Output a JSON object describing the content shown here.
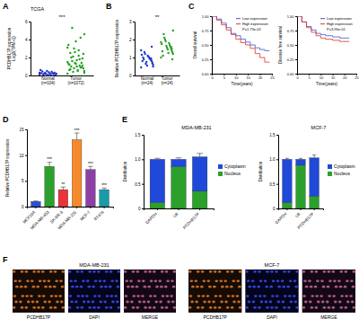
{
  "chart_data": [
    {
      "type": "strip",
      "panel": "A",
      "title": "TCGA",
      "categories": [
        "Normal\n(n=104)",
        "Tumor\n(n=1072)"
      ],
      "colors": [
        "#2233cc",
        "#1fa01f"
      ],
      "values": [
        [
          0.1,
          0.2,
          0.05,
          0.3,
          0.15,
          0.25,
          0.4,
          0.1,
          0.2,
          0.35,
          0.05,
          0.5,
          0.15,
          0.3,
          0.2,
          0.1,
          0.45,
          0.25,
          0.6,
          0.3
        ],
        [
          0.2,
          0.5,
          0.8,
          1.1,
          1.4,
          0.9,
          1.8,
          2.2,
          0.6,
          1.0,
          1.3,
          2.6,
          3.0,
          0.4,
          1.6,
          2.0,
          0.7,
          1.2,
          3.4,
          1.5,
          0.3,
          2.4,
          1.9,
          0.9,
          4.2,
          1.1,
          2.8,
          0.5,
          1.7,
          3.8,
          1.4,
          0.8,
          2.1,
          5.3,
          1.0,
          2.5,
          0.6,
          1.3,
          3.1,
          4.6
        ]
      ],
      "ylabel": "PCDHB17P expression\nLog2(TPM+1)",
      "ylim": [
        0,
        6
      ],
      "yticks": [
        0,
        2,
        4,
        6
      ],
      "significance": "***"
    },
    {
      "type": "strip",
      "panel": "B",
      "categories": [
        "Normal\n(n=24)",
        "Tumor\n(n=24)"
      ],
      "colors": [
        "#1f3fd0",
        "#2aa02a"
      ],
      "values": [
        [
          0.45,
          0.6,
          0.7,
          0.8,
          0.85,
          0.9,
          0.95,
          1.0,
          1.05,
          1.1,
          0.55,
          0.75,
          0.65,
          1.2,
          1.3,
          0.9,
          1.0,
          0.8,
          1.15,
          1.4,
          0.5,
          0.7,
          1.6,
          0.95
        ],
        [
          1.0,
          1.2,
          1.3,
          1.4,
          1.5,
          1.6,
          1.7,
          1.8,
          1.25,
          1.45,
          1.55,
          1.65,
          1.9,
          2.0,
          2.1,
          2.3,
          1.1,
          1.35,
          1.75,
          1.85,
          2.5,
          0.9,
          1.5,
          1.6
        ]
      ],
      "ylabel": "Relative PCDHB17P expression",
      "ylim": [
        0,
        3
      ],
      "yticks": [
        0,
        1,
        2,
        3
      ],
      "significance": "**"
    },
    {
      "type": "km",
      "panel": "C",
      "ylabel": "Overall survival",
      "xlabel": "Time(years)",
      "xlim": [
        0,
        25
      ],
      "xticks": [
        0,
        5,
        10,
        15,
        20,
        25
      ],
      "ylim": [
        0,
        1
      ],
      "yticks": [
        {
          "value": 0,
          "label": "0.00"
        },
        {
          "value": 0.25,
          "label": "0.25"
        },
        {
          "value": 0.5,
          "label": "0.50"
        },
        {
          "value": 0.75,
          "label": "0.75"
        },
        {
          "value": 1,
          "label": "1.00"
        }
      ],
      "legend": "upper right",
      "annotation": "P=1.73e-02",
      "series": [
        {
          "name": "Low expression",
          "color": "#3a56d4",
          "x": [
            0,
            2,
            4,
            6,
            8,
            10,
            12,
            14,
            16,
            18,
            20,
            22,
            24
          ],
          "values": [
            1,
            0.95,
            0.88,
            0.8,
            0.7,
            0.66,
            0.6,
            0.55,
            0.5,
            0.45,
            0.42,
            0.4,
            0.4
          ]
        },
        {
          "name": "High expression",
          "color": "#e0302a",
          "x": [
            0,
            2,
            4,
            6,
            8,
            10,
            12,
            14,
            16,
            18,
            20,
            22,
            24
          ],
          "values": [
            1,
            0.93,
            0.85,
            0.76,
            0.68,
            0.6,
            0.54,
            0.5,
            0.44,
            0.35,
            0.28,
            0.2,
            0.2
          ]
        }
      ]
    },
    {
      "type": "km",
      "ylabel": "Disease free survival",
      "xlabel": "Time(years)",
      "xlim": [
        0,
        25
      ],
      "xticks": [
        0,
        5,
        10,
        15,
        20,
        25
      ],
      "ylim": [
        0,
        1
      ],
      "yticks": [
        {
          "value": 0,
          "label": "0.00"
        },
        {
          "value": 0.25,
          "label": "0.25"
        },
        {
          "value": 0.5,
          "label": "0.50"
        },
        {
          "value": 0.75,
          "label": "0.75"
        },
        {
          "value": 1,
          "label": "1.00"
        }
      ],
      "legend": "upper right",
      "annotation": "P=3.96e-01",
      "series": [
        {
          "name": "Low expression",
          "color": "#3a56d4",
          "x": [
            0,
            2,
            4,
            6,
            8,
            10,
            12,
            15,
            18,
            22
          ],
          "values": [
            1,
            0.9,
            0.82,
            0.76,
            0.7,
            0.68,
            0.66,
            0.64,
            0.62,
            0.62
          ]
        },
        {
          "name": "High expression",
          "color": "#e0302a",
          "x": [
            0,
            2,
            4,
            6,
            8,
            10,
            12,
            15,
            18,
            22
          ],
          "values": [
            1,
            0.9,
            0.8,
            0.72,
            0.66,
            0.62,
            0.6,
            0.58,
            0.56,
            0.56
          ]
        }
      ]
    },
    {
      "type": "bar",
      "panel": "D",
      "categories": [
        "MCF10A",
        "MDA-MB-453",
        "SK-BR-3",
        "MDA-MB-231",
        "MCF-7",
        "BT474"
      ],
      "values": [
        1,
        7.8,
        3.3,
        13,
        7.2,
        3.3
      ],
      "errors": [
        0.1,
        0.8,
        0.5,
        1.3,
        0.6,
        0.3
      ],
      "colors": [
        "#2b4fd8",
        "#2ca02c",
        "#e8343a",
        "#f58a2c",
        "#8e3fa6",
        "#1b9aa8"
      ],
      "significance": [
        null,
        "***",
        "**",
        "***",
        "***",
        "***"
      ],
      "ylabel": "Relative PCDHB17P expression",
      "ylim": [
        0,
        15
      ],
      "yticks": [
        0,
        5,
        10,
        15
      ]
    },
    {
      "type": "bar",
      "panel": "E",
      "title": "MDA-MB-231",
      "stacked": true,
      "legend": "right",
      "categories": [
        "GAPDH",
        "U6",
        "PCDHB17P"
      ],
      "ylabel": "Distribution",
      "ylim": [
        0,
        1.5
      ],
      "yticks": [
        0,
        0.5,
        {
          "value": 1,
          "label": "1.0"
        },
        1.5
      ],
      "series": [
        {
          "name": "Nucleus",
          "color": "#2ca02c",
          "values": [
            0.12,
            0.85,
            0.35
          ]
        },
        {
          "name": "Cytoplasm",
          "color": "#1f49d8",
          "values": [
            0.88,
            0.15,
            0.7
          ],
          "errors": [
            0.02,
            0.03,
            0.07
          ]
        }
      ]
    },
    {
      "type": "bar",
      "title": "MCF-7",
      "stacked": true,
      "legend": "right",
      "categories": [
        "GAPDH",
        "U6",
        "PCDHB17P"
      ],
      "ylabel": "Distribution",
      "ylim": [
        0,
        1.5
      ],
      "yticks": [
        0,
        0.5,
        {
          "value": 1,
          "label": "1.0"
        },
        1.5
      ],
      "series": [
        {
          "name": "Nucleus",
          "color": "#2ca02c",
          "values": [
            0.12,
            0.88,
            0.25
          ]
        },
        {
          "name": "Cytoplasm",
          "color": "#1f49d8",
          "values": [
            0.88,
            0.12,
            0.78
          ],
          "errors": [
            0.02,
            0.02,
            0.06
          ]
        }
      ]
    },
    {
      "type": "image",
      "panel": "F",
      "title": "MDA-MB-231",
      "panels": [
        "PCDHB17P",
        "DAPI",
        "MERGE"
      ]
    },
    {
      "type": "image",
      "title": "MCF-7",
      "panels": [
        "PCDHB17P",
        "DAPI",
        "MERGE"
      ]
    }
  ]
}
